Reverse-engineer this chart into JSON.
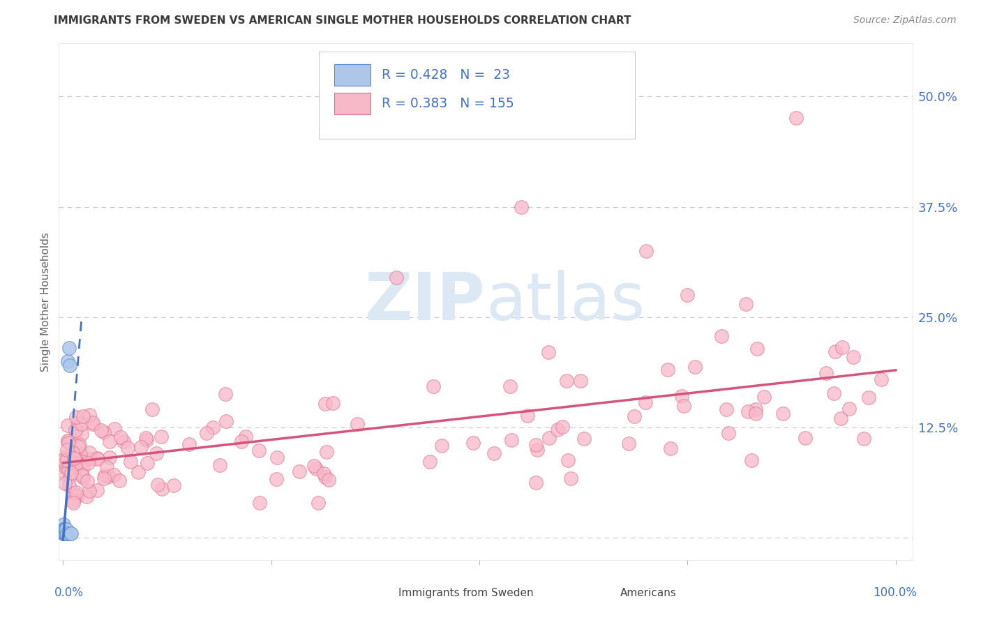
{
  "title": "IMMIGRANTS FROM SWEDEN VS AMERICAN SINGLE MOTHER HOUSEHOLDS CORRELATION CHART",
  "source": "Source: ZipAtlas.com",
  "ylabel": "Single Mother Households",
  "ytick_labels": [
    "",
    "12.5%",
    "25.0%",
    "37.5%",
    "50.0%"
  ],
  "ytick_vals": [
    0.0,
    0.125,
    0.25,
    0.375,
    0.5
  ],
  "sweden_R": 0.428,
  "sweden_N": 23,
  "americans_R": 0.383,
  "americans_N": 155,
  "sweden_fill_color": "#aec6e8",
  "sweden_edge_color": "#5b8fd4",
  "americans_fill_color": "#f7b8c8",
  "americans_edge_color": "#e07090",
  "sweden_line_color": "#4472c4",
  "americans_line_color": "#d4547a",
  "background_color": "#ffffff",
  "grid_color": "#c8c8c8",
  "watermark_color": "#dde8f5",
  "title_color": "#3a3a3a",
  "source_color": "#888888",
  "axis_label_color": "#4472c4",
  "ylabel_color": "#666666"
}
